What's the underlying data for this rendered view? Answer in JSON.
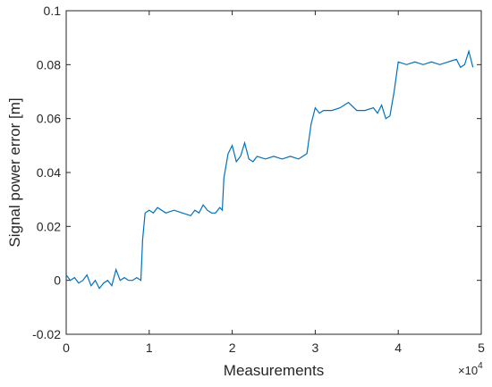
{
  "chart_data": {
    "type": "line",
    "title": "",
    "xlabel": "Measurements",
    "ylabel": "Signal power error [m]",
    "x_exponent_label": {
      "base": "×10",
      "exponent": "4"
    },
    "xlim": [
      0,
      5
    ],
    "ylim": [
      -0.02,
      0.1
    ],
    "x_ticks": [
      0,
      1,
      2,
      3,
      4,
      5
    ],
    "x_tick_labels": [
      "0",
      "1",
      "2",
      "3",
      "4",
      "5"
    ],
    "y_ticks": [
      -0.02,
      0,
      0.02,
      0.04,
      0.06,
      0.08,
      0.1
    ],
    "y_tick_labels": [
      "-0.02",
      "0",
      "0.02",
      "0.04",
      "0.06",
      "0.08",
      "0.1"
    ],
    "grid": false,
    "line_color": "#0072bd",
    "series": [
      {
        "x": [
          0,
          0.05,
          0.1,
          0.15,
          0.2,
          0.25,
          0.3,
          0.35,
          0.4,
          0.45,
          0.5,
          0.55,
          0.6,
          0.65,
          0.7,
          0.75,
          0.8,
          0.85,
          0.9,
          0.92,
          0.95,
          1.0,
          1.05,
          1.1,
          1.2,
          1.3,
          1.4,
          1.5,
          1.55,
          1.6,
          1.65,
          1.7,
          1.75,
          1.8,
          1.85,
          1.88,
          1.9,
          1.95,
          2.0,
          2.05,
          2.1,
          2.15,
          2.2,
          2.25,
          2.3,
          2.4,
          2.5,
          2.6,
          2.7,
          2.8,
          2.9,
          2.95,
          3.0,
          3.05,
          3.1,
          3.2,
          3.3,
          3.4,
          3.5,
          3.6,
          3.7,
          3.75,
          3.8,
          3.85,
          3.9,
          3.95,
          4.0,
          4.1,
          4.2,
          4.3,
          4.4,
          4.5,
          4.6,
          4.7,
          4.75,
          4.8,
          4.85,
          4.9
        ],
        "y": [
          0.002,
          0.0,
          0.001,
          -0.001,
          0.0,
          0.002,
          -0.002,
          0.0,
          -0.003,
          -0.001,
          0.0,
          -0.002,
          0.004,
          0.0,
          0.001,
          0.0,
          0.0,
          0.001,
          0.0,
          0.015,
          0.025,
          0.026,
          0.025,
          0.027,
          0.025,
          0.026,
          0.025,
          0.024,
          0.026,
          0.025,
          0.028,
          0.026,
          0.025,
          0.025,
          0.027,
          0.026,
          0.038,
          0.047,
          0.05,
          0.044,
          0.046,
          0.051,
          0.045,
          0.044,
          0.046,
          0.045,
          0.046,
          0.045,
          0.046,
          0.045,
          0.047,
          0.058,
          0.064,
          0.062,
          0.063,
          0.063,
          0.064,
          0.066,
          0.063,
          0.063,
          0.064,
          0.062,
          0.065,
          0.06,
          0.061,
          0.07,
          0.081,
          0.08,
          0.081,
          0.08,
          0.081,
          0.08,
          0.081,
          0.082,
          0.079,
          0.08,
          0.085,
          0.079
        ]
      }
    ]
  }
}
